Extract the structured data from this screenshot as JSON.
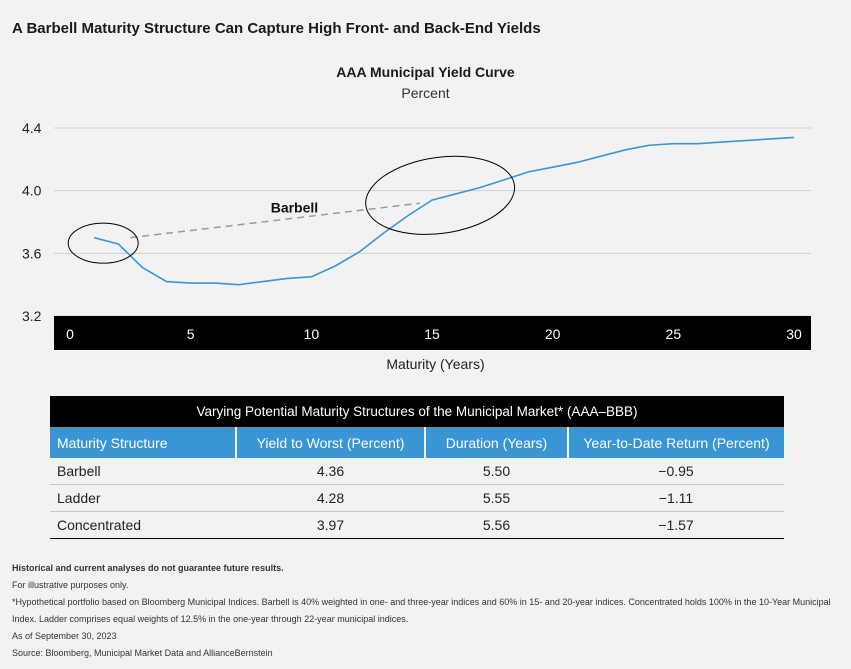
{
  "header": {
    "title": "A Barbell Maturity Structure Can Capture High Front- and Back-End Yields"
  },
  "chart_data": {
    "type": "line",
    "title": "AAA Municipal Yield Curve",
    "subtitle": "Percent",
    "xlabel": "Maturity (Years)",
    "ylabel": "",
    "xlim": [
      0,
      30
    ],
    "ylim": [
      3.2,
      4.4
    ],
    "x_ticks": [
      0,
      5,
      10,
      15,
      20,
      25,
      30
    ],
    "y_ticks": [
      3.2,
      3.6,
      4.0,
      4.4
    ],
    "x_tick_labels": [
      "0",
      "5",
      "10",
      "15",
      "20",
      "25",
      "30"
    ],
    "y_tick_labels": [
      "3.2",
      "3.6",
      "4.0",
      "4.4"
    ],
    "grid": "horizontal",
    "line_color": "#3a95d4",
    "series": [
      {
        "x": [
          1,
          2,
          3,
          4,
          5,
          6,
          7,
          8,
          9,
          10,
          11,
          12,
          13,
          14,
          15,
          16,
          17,
          18,
          19,
          20,
          21,
          22,
          23,
          24,
          25,
          26,
          27,
          28,
          29,
          30
        ],
        "values": [
          3.7,
          3.66,
          3.51,
          3.42,
          3.41,
          3.41,
          3.4,
          3.42,
          3.44,
          3.45,
          3.52,
          3.61,
          3.73,
          3.84,
          3.94,
          3.98,
          4.02,
          4.07,
          4.12,
          4.15,
          4.18,
          4.22,
          4.26,
          4.29,
          4.3,
          4.3,
          4.31,
          4.32,
          4.33,
          4.34
        ]
      }
    ],
    "annotation": {
      "text": "Barbell",
      "from": [
        2.5,
        3.7
      ],
      "to": [
        14.5,
        3.92
      ]
    }
  },
  "table": {
    "title": "Varying Potential Maturity Structures of the Municipal Market* (AAA–BBB)",
    "headers": [
      "Maturity Structure",
      "Yield to Worst (Percent)",
      "Duration (Years)",
      "Year-to-Date Return (Percent)"
    ],
    "rows": [
      [
        "Barbell",
        "4.36",
        "5.50",
        "−0.95"
      ],
      [
        "Ladder",
        "4.28",
        "5.55",
        "−1.11"
      ],
      [
        "Concentrated",
        "3.97",
        "5.56",
        "−1.57"
      ]
    ]
  },
  "notes": {
    "disclaimer": "Historical and current analyses do not guarantee future results.",
    "illustrative": "For illustrative purposes only.",
    "footnote_line1": "*Hypothetical portfolio based on Bloomberg Municipal Indices. Barbell is 40% weighted in one- and three-year indices and 60% in 15- and 20-year indices. Concentrated holds 100% in the 10-Year Municipal",
    "footnote_line2": "Index. Ladder comprises equal weights of 12.5% in the one-year through 22-year municipal indices.",
    "as_of": "As of September 30, 2023",
    "source": "Source: Bloomberg, Municipal Market Data and AllianceBernstein"
  }
}
